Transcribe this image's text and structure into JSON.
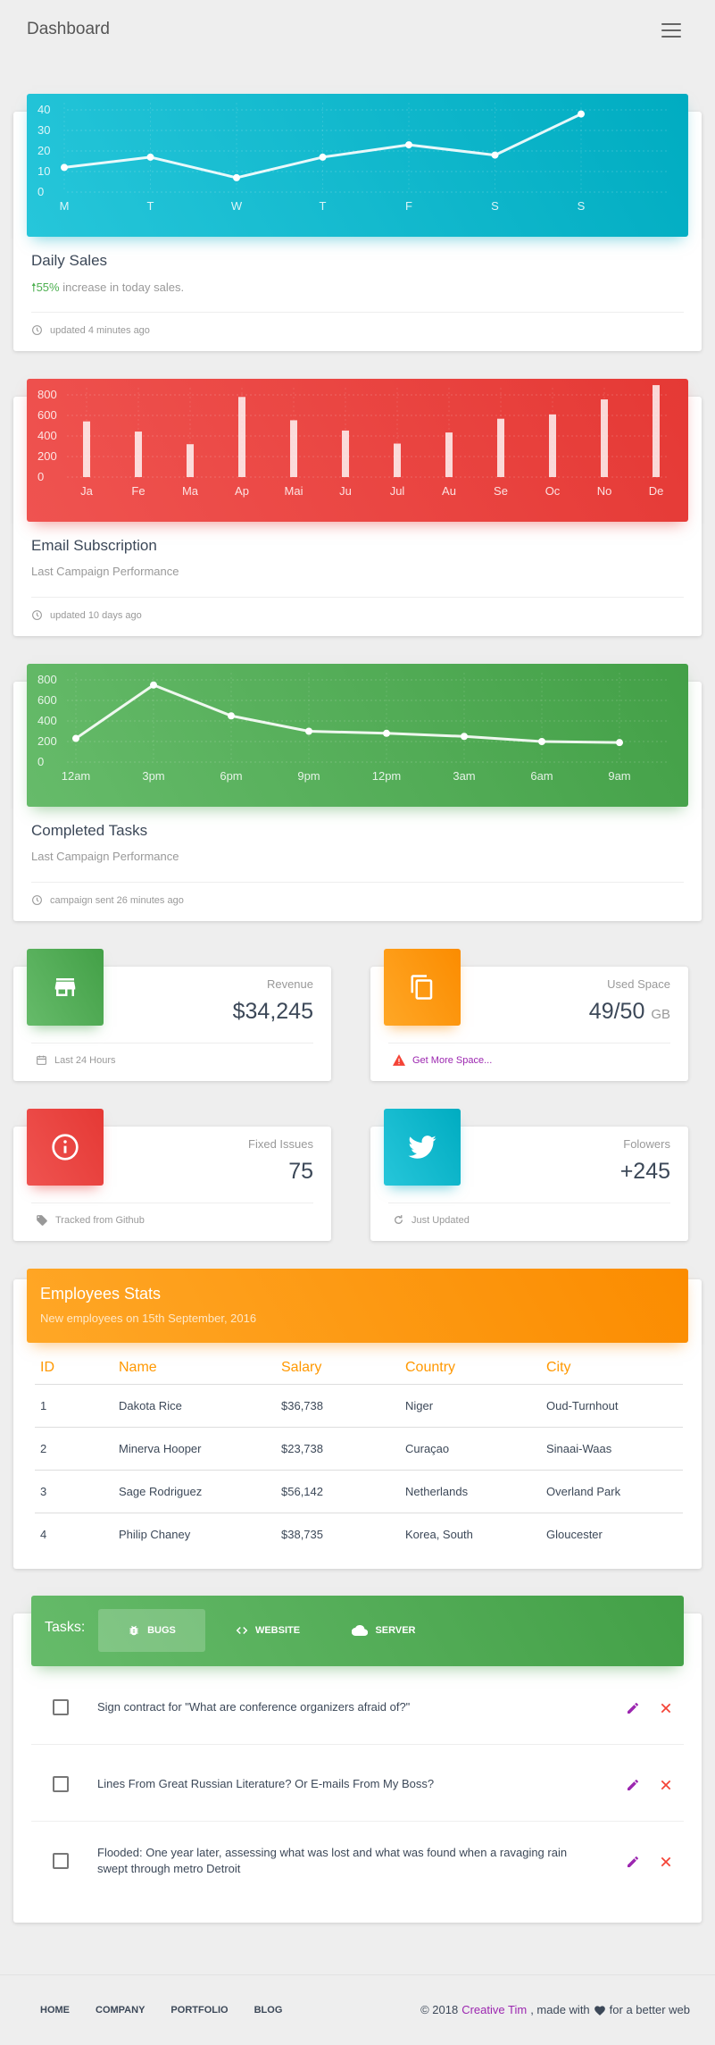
{
  "topbar": {
    "title": "Dashboard"
  },
  "cards": {
    "daily": {
      "title": "Daily Sales",
      "pct": "55%",
      "desc": " increase in today sales.",
      "foot": "updated 4 minutes ago"
    },
    "email": {
      "title": "Email Subscription",
      "desc": "Last Campaign Performance",
      "foot": "updated 10 days ago"
    },
    "tasks": {
      "title": "Completed Tasks",
      "desc": "Last Campaign Performance",
      "foot": "campaign sent 26 minutes ago"
    }
  },
  "stats": [
    {
      "category": "Revenue",
      "value": "$34,245",
      "unit": "",
      "footer": "Last 24 Hours",
      "icon": "store-icon"
    },
    {
      "category": "Used Space",
      "value": "49/50",
      "unit": "GB",
      "footer": "Get More Space...",
      "icon": "content-copy-icon"
    },
    {
      "category": "Fixed Issues",
      "value": "75",
      "unit": "",
      "footer": "Tracked from Github",
      "icon": "info-outline-icon"
    },
    {
      "category": "Folowers",
      "value": "+245",
      "unit": "",
      "footer": "Just Updated",
      "icon": "twitter-icon"
    }
  ],
  "employees": {
    "title": "Employees Stats",
    "subtitle": "New employees on 15th September, 2016",
    "headers": [
      "ID",
      "Name",
      "Salary",
      "Country",
      "City"
    ],
    "rows": [
      [
        "1",
        "Dakota Rice",
        "$36,738",
        "Niger",
        "Oud-Turnhout"
      ],
      [
        "2",
        "Minerva Hooper",
        "$23,738",
        "Curaçao",
        "Sinaai-Waas"
      ],
      [
        "3",
        "Sage Rodriguez",
        "$56,142",
        "Netherlands",
        "Overland Park"
      ],
      [
        "4",
        "Philip Chaney",
        "$38,735",
        "Korea, South",
        "Gloucester"
      ]
    ]
  },
  "tasks_panel": {
    "label": "Tasks:",
    "tabs": [
      "BUGS",
      "WEBSITE",
      "SERVER"
    ],
    "items": [
      "Sign contract for \"What are conference organizers afraid of?\"",
      "Lines From Great Russian Literature? Or E-mails From My Boss?",
      "Flooded: One year later, assessing what was lost and what was found when a ravaging rain swept through metro Detroit"
    ]
  },
  "footer": {
    "links": [
      "HOME",
      "COMPANY",
      "PORTFOLIO",
      "BLOG"
    ],
    "copy_pre": "© 2018",
    "brand": "Creative Tim",
    "copy_mid": ", made with",
    "copy_post": "for a better web"
  },
  "colors": {
    "cyan": "#00acc1",
    "red": "#e53935",
    "green": "#43a047",
    "orange": "#fb8c00",
    "purple": "#9c27b0"
  },
  "chart_data": [
    {
      "type": "line",
      "categories": [
        "M",
        "T",
        "W",
        "T",
        "F",
        "S",
        "S"
      ],
      "values": [
        12,
        17,
        7,
        17,
        23,
        18,
        38
      ],
      "yticks": [
        0,
        10,
        20,
        30,
        40
      ],
      "ylim": [
        0,
        50
      ],
      "title": "",
      "xlabel": "",
      "ylabel": ""
    },
    {
      "type": "bar",
      "categories": [
        "Ja",
        "Fe",
        "Ma",
        "Ap",
        "Mai",
        "Ju",
        "Jul",
        "Au",
        "Se",
        "Oc",
        "No",
        "De"
      ],
      "values": [
        542,
        443,
        320,
        780,
        553,
        453,
        326,
        434,
        568,
        610,
        756,
        895
      ],
      "yticks": [
        0,
        200,
        400,
        600,
        800
      ],
      "ylim": [
        0,
        1000
      ],
      "title": "",
      "xlabel": "",
      "ylabel": ""
    },
    {
      "type": "line",
      "categories": [
        "12am",
        "3pm",
        "6pm",
        "9pm",
        "12pm",
        "3am",
        "6am",
        "9am"
      ],
      "values": [
        230,
        750,
        450,
        300,
        280,
        250,
        200,
        190
      ],
      "yticks": [
        0,
        200,
        400,
        600,
        800
      ],
      "ylim": [
        0,
        1000
      ],
      "title": "",
      "xlabel": "",
      "ylabel": ""
    }
  ]
}
